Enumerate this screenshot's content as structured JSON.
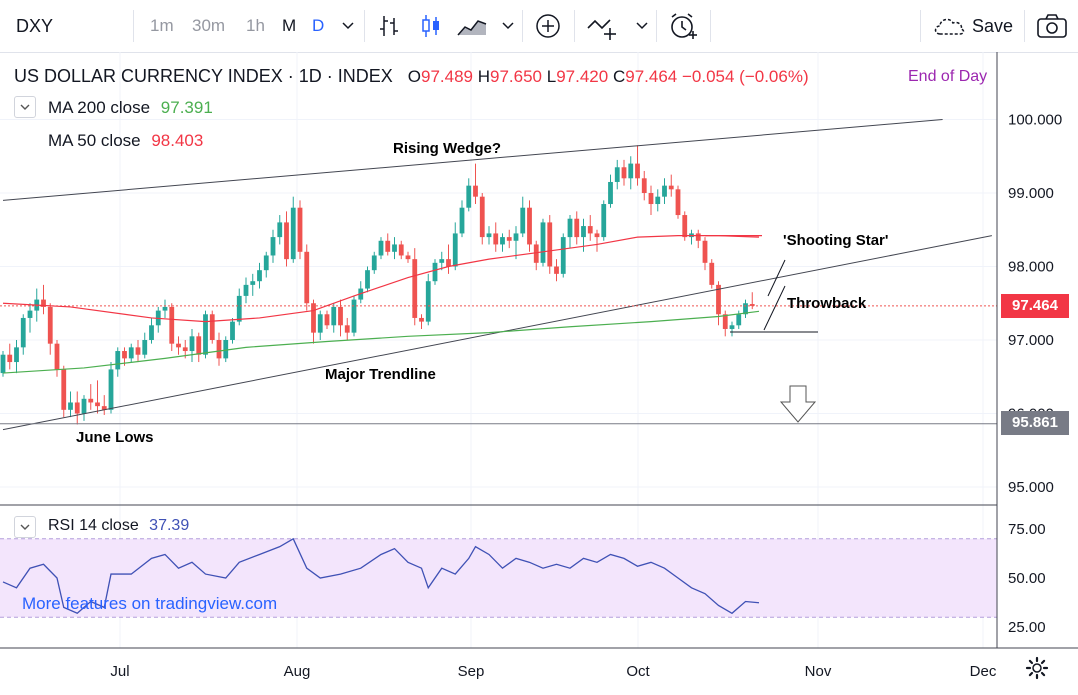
{
  "toolbar": {
    "symbol": "DXY",
    "intervals": [
      "1m",
      "30m",
      "1h",
      "M",
      "D"
    ],
    "save_label": "Save",
    "icons": [
      "chevron-down-icon",
      "bar-style-icon",
      "candles-icon",
      "area-icon",
      "add-indicator-icon",
      "compare-icon",
      "alert-icon",
      "cloud-icon",
      "camera-icon"
    ]
  },
  "header": {
    "title": "US DOLLAR CURRENCY INDEX · 1D · INDEX",
    "open_label": "O",
    "open": "97.489",
    "high_label": "H",
    "high": "97.650",
    "low_label": "L",
    "low": "97.420",
    "close_label": "C",
    "close": "97.464",
    "change": "−0.054 (−0.06%)",
    "session": "End of Day"
  },
  "indicators": {
    "ma200_label": "MA 200 close",
    "ma200_value": "97.391",
    "ma50_label": "MA 50 close",
    "ma50_value": "98.403",
    "rsi_label": "RSI 14 close",
    "rsi_value": "37.39"
  },
  "price_labels": {
    "last": "97.464",
    "level": "95.861"
  },
  "annotations": {
    "rising_wedge": "Rising Wedge?",
    "shooting_star": "'Shooting Star'",
    "throwback": "Throwback",
    "major_trendline": "Major Trendline",
    "june_lows": "June Lows"
  },
  "watermark": "More features on tradingview.com",
  "colors": {
    "up": "#26a69a",
    "down": "#ef5350",
    "ma50": "#f23645",
    "ma200": "#4caf50",
    "rsi": "#3f51b5",
    "rsi_band": "#f3e5fc",
    "level": "#787b86"
  },
  "chart_data": {
    "type": "candlestick",
    "price_ticks": [
      95.0,
      96.0,
      97.0,
      98.0,
      99.0,
      100.0
    ],
    "price_tick_labels": [
      "95.000",
      "96.000",
      "97.000",
      "98.000",
      "99.000",
      "100.000"
    ],
    "ylim": [
      94.7,
      100.5
    ],
    "x_tick_labels": [
      "Jul",
      "Aug",
      "Sep",
      "Oct",
      "Nov",
      "Dec"
    ],
    "rsi_ticks": [
      25,
      50,
      75
    ],
    "rsi_tick_labels": [
      "25.00",
      "50.00",
      "75.00"
    ],
    "rsi_band": [
      30,
      70
    ],
    "level_line": 95.861,
    "last_price": 97.464,
    "ohlc": [
      [
        96.55,
        96.85,
        96.5,
        96.8
      ],
      [
        96.8,
        96.95,
        96.6,
        96.7
      ],
      [
        96.7,
        97.0,
        96.55,
        96.9
      ],
      [
        96.9,
        97.35,
        96.8,
        97.3
      ],
      [
        97.3,
        97.5,
        97.1,
        97.4
      ],
      [
        97.4,
        97.7,
        97.25,
        97.55
      ],
      [
        97.55,
        97.75,
        97.35,
        97.45
      ],
      [
        97.45,
        97.5,
        96.8,
        96.95
      ],
      [
        96.95,
        97.0,
        96.5,
        96.6
      ],
      [
        96.6,
        96.65,
        95.95,
        96.05
      ],
      [
        96.05,
        96.3,
        95.95,
        96.15
      ],
      [
        96.15,
        96.3,
        95.85,
        96.0
      ],
      [
        96.0,
        96.25,
        95.9,
        96.2
      ],
      [
        96.2,
        96.4,
        96.05,
        96.15
      ],
      [
        96.15,
        96.45,
        96.0,
        96.1
      ],
      [
        96.1,
        96.25,
        95.98,
        96.05
      ],
      [
        96.05,
        96.7,
        96.0,
        96.6
      ],
      [
        96.6,
        96.9,
        96.5,
        96.85
      ],
      [
        96.85,
        96.9,
        96.65,
        96.75
      ],
      [
        96.75,
        96.95,
        96.7,
        96.9
      ],
      [
        96.9,
        97.0,
        96.7,
        96.8
      ],
      [
        96.8,
        97.1,
        96.75,
        97.0
      ],
      [
        97.0,
        97.3,
        96.95,
        97.2
      ],
      [
        97.2,
        97.45,
        97.1,
        97.4
      ],
      [
        97.4,
        97.55,
        97.3,
        97.45
      ],
      [
        97.45,
        97.5,
        96.85,
        96.95
      ],
      [
        96.95,
        97.05,
        96.8,
        96.9
      ],
      [
        96.9,
        97.0,
        96.75,
        96.85
      ],
      [
        96.85,
        97.15,
        96.7,
        97.05
      ],
      [
        97.05,
        97.1,
        96.7,
        96.8
      ],
      [
        96.8,
        97.4,
        96.75,
        97.35
      ],
      [
        97.35,
        97.4,
        96.95,
        97.0
      ],
      [
        97.0,
        97.1,
        96.65,
        96.75
      ],
      [
        96.75,
        97.05,
        96.7,
        97.0
      ],
      [
        97.0,
        97.3,
        96.95,
        97.25
      ],
      [
        97.25,
        97.7,
        97.2,
        97.6
      ],
      [
        97.6,
        97.85,
        97.5,
        97.75
      ],
      [
        97.75,
        97.9,
        97.6,
        97.8
      ],
      [
        97.8,
        98.05,
        97.7,
        97.95
      ],
      [
        97.95,
        98.2,
        97.85,
        98.15
      ],
      [
        98.15,
        98.5,
        98.05,
        98.4
      ],
      [
        98.4,
        98.7,
        98.3,
        98.6
      ],
      [
        98.6,
        98.75,
        98.0,
        98.1
      ],
      [
        98.1,
        98.95,
        98.05,
        98.8
      ],
      [
        98.8,
        98.9,
        98.1,
        98.2
      ],
      [
        98.2,
        98.3,
        97.4,
        97.5
      ],
      [
        97.5,
        97.55,
        96.95,
        97.1
      ],
      [
        97.1,
        97.4,
        97.0,
        97.35
      ],
      [
        97.35,
        97.4,
        97.15,
        97.2
      ],
      [
        97.2,
        97.5,
        97.1,
        97.45
      ],
      [
        97.45,
        97.55,
        97.05,
        97.2
      ],
      [
        97.2,
        97.3,
        97.0,
        97.1
      ],
      [
        97.1,
        97.6,
        97.05,
        97.55
      ],
      [
        97.55,
        97.8,
        97.5,
        97.7
      ],
      [
        97.7,
        98.0,
        97.65,
        97.95
      ],
      [
        97.95,
        98.2,
        97.9,
        98.15
      ],
      [
        98.15,
        98.4,
        98.1,
        98.35
      ],
      [
        98.35,
        98.45,
        98.15,
        98.2
      ],
      [
        98.2,
        98.4,
        98.1,
        98.3
      ],
      [
        98.3,
        98.35,
        98.1,
        98.15
      ],
      [
        98.15,
        98.2,
        98.05,
        98.1
      ],
      [
        98.1,
        98.25,
        97.2,
        97.3
      ],
      [
        97.3,
        97.35,
        97.15,
        97.25
      ],
      [
        97.25,
        97.9,
        97.2,
        97.8
      ],
      [
        97.8,
        98.1,
        97.75,
        98.05
      ],
      [
        98.05,
        98.2,
        97.95,
        98.1
      ],
      [
        98.1,
        98.3,
        97.9,
        98.0
      ],
      [
        98.0,
        98.6,
        97.95,
        98.45
      ],
      [
        98.45,
        98.9,
        98.4,
        98.8
      ],
      [
        98.8,
        99.2,
        98.75,
        99.1
      ],
      [
        99.1,
        99.4,
        98.85,
        98.95
      ],
      [
        98.95,
        99.0,
        98.3,
        98.4
      ],
      [
        98.4,
        98.55,
        98.3,
        98.45
      ],
      [
        98.45,
        98.6,
        98.2,
        98.3
      ],
      [
        98.3,
        98.45,
        98.2,
        98.4
      ],
      [
        98.4,
        98.5,
        98.25,
        98.35
      ],
      [
        98.35,
        98.55,
        98.1,
        98.45
      ],
      [
        98.45,
        98.95,
        98.4,
        98.8
      ],
      [
        98.8,
        98.9,
        98.2,
        98.3
      ],
      [
        98.3,
        98.35,
        97.95,
        98.05
      ],
      [
        98.05,
        98.65,
        98.0,
        98.6
      ],
      [
        98.6,
        98.7,
        97.9,
        98.0
      ],
      [
        98.0,
        98.1,
        97.8,
        97.9
      ],
      [
        97.9,
        98.45,
        97.85,
        98.4
      ],
      [
        98.4,
        98.7,
        98.25,
        98.65
      ],
      [
        98.65,
        98.75,
        98.3,
        98.4
      ],
      [
        98.4,
        98.65,
        98.2,
        98.55
      ],
      [
        98.55,
        98.7,
        98.35,
        98.45
      ],
      [
        98.45,
        98.5,
        98.2,
        98.4
      ],
      [
        98.4,
        98.9,
        98.35,
        98.85
      ],
      [
        98.85,
        99.25,
        98.8,
        99.15
      ],
      [
        99.15,
        99.45,
        99.05,
        99.35
      ],
      [
        99.35,
        99.45,
        99.1,
        99.2
      ],
      [
        99.2,
        99.5,
        99.05,
        99.4
      ],
      [
        99.4,
        99.65,
        99.1,
        99.2
      ],
      [
        99.2,
        99.3,
        98.9,
        99.0
      ],
      [
        99.0,
        99.1,
        98.7,
        98.85
      ],
      [
        98.85,
        99.05,
        98.75,
        98.95
      ],
      [
        98.95,
        99.2,
        98.85,
        99.1
      ],
      [
        99.1,
        99.25,
        98.95,
        99.05
      ],
      [
        99.05,
        99.1,
        98.65,
        98.7
      ],
      [
        98.7,
        98.75,
        98.35,
        98.4
      ],
      [
        98.4,
        98.5,
        98.3,
        98.45
      ],
      [
        98.45,
        98.5,
        98.25,
        98.35
      ],
      [
        98.35,
        98.4,
        97.95,
        98.05
      ],
      [
        98.05,
        98.1,
        97.7,
        97.75
      ],
      [
        97.75,
        97.8,
        97.2,
        97.35
      ],
      [
        97.35,
        97.4,
        97.05,
        97.15
      ],
      [
        97.15,
        97.25,
        97.05,
        97.2
      ],
      [
        97.2,
        97.4,
        97.15,
        97.35
      ],
      [
        97.35,
        97.55,
        97.3,
        97.5
      ],
      [
        97.489,
        97.65,
        97.42,
        97.464
      ]
    ],
    "ma50": [
      [
        0,
        97.5
      ],
      [
        10,
        97.45
      ],
      [
        22,
        97.3
      ],
      [
        30,
        97.25
      ],
      [
        38,
        97.3
      ],
      [
        46,
        97.4
      ],
      [
        52,
        97.6
      ],
      [
        60,
        97.85
      ],
      [
        66,
        98.0
      ],
      [
        72,
        98.1
      ],
      [
        80,
        98.2
      ],
      [
        88,
        98.3
      ],
      [
        94,
        98.4
      ],
      [
        100,
        98.42
      ],
      [
        106,
        98.42
      ],
      [
        112,
        98.4
      ]
    ],
    "ma200": [
      [
        0,
        96.55
      ],
      [
        12,
        96.62
      ],
      [
        24,
        96.75
      ],
      [
        36,
        96.9
      ],
      [
        48,
        96.98
      ],
      [
        60,
        97.05
      ],
      [
        72,
        97.1
      ],
      [
        84,
        97.18
      ],
      [
        96,
        97.25
      ],
      [
        106,
        97.32
      ],
      [
        112,
        97.39
      ]
    ],
    "rsi": [
      [
        0,
        48
      ],
      [
        2,
        45
      ],
      [
        4,
        55
      ],
      [
        6,
        57
      ],
      [
        8,
        50
      ],
      [
        9,
        35
      ],
      [
        11,
        32
      ],
      [
        13,
        38
      ],
      [
        15,
        35
      ],
      [
        16,
        52
      ],
      [
        19,
        52
      ],
      [
        22,
        60
      ],
      [
        24,
        62
      ],
      [
        26,
        55
      ],
      [
        28,
        58
      ],
      [
        30,
        52
      ],
      [
        33,
        50
      ],
      [
        35,
        58
      ],
      [
        38,
        62
      ],
      [
        41,
        66
      ],
      [
        43,
        70
      ],
      [
        45,
        55
      ],
      [
        47,
        50
      ],
      [
        50,
        52
      ],
      [
        53,
        55
      ],
      [
        56,
        62
      ],
      [
        58,
        65
      ],
      [
        60,
        58
      ],
      [
        62,
        55
      ],
      [
        63,
        45
      ],
      [
        65,
        55
      ],
      [
        67,
        52
      ],
      [
        69,
        60
      ],
      [
        70,
        66
      ],
      [
        72,
        62
      ],
      [
        74,
        55
      ],
      [
        76,
        60
      ],
      [
        78,
        58
      ],
      [
        80,
        55
      ],
      [
        82,
        57
      ],
      [
        84,
        55
      ],
      [
        86,
        60
      ],
      [
        88,
        58
      ],
      [
        90,
        62
      ],
      [
        92,
        60
      ],
      [
        94,
        56
      ],
      [
        96,
        58
      ],
      [
        98,
        55
      ],
      [
        100,
        50
      ],
      [
        102,
        45
      ],
      [
        104,
        42
      ],
      [
        106,
        36
      ],
      [
        108,
        32
      ],
      [
        110,
        38
      ],
      [
        112,
        37.39
      ]
    ]
  }
}
